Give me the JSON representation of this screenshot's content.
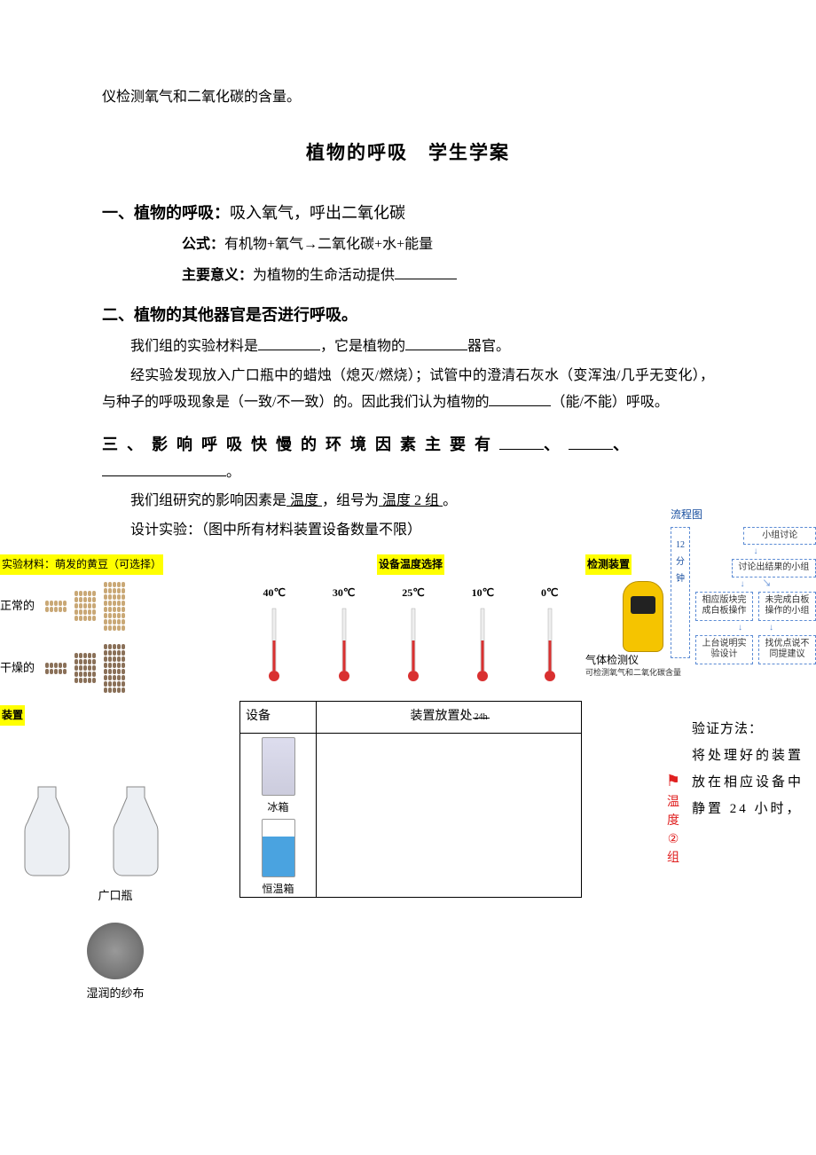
{
  "top_line": "仪检测氧气和二氧化碳的含量。",
  "title": "植物的呼吸　学生学案",
  "s1": {
    "heading_bold": "一、植物的呼吸：",
    "heading_rest": "吸入氧气，呼出二氧化碳",
    "formula_lbl": "公式：",
    "formula_txt": "有机物+氧气→二氧化碳+水+能量",
    "meaning_lbl": "主要意义：",
    "meaning_txt": "为植物的生命活动提供"
  },
  "s2": {
    "heading": "二、植物的其他器官是否进行呼吸。",
    "p1a": "我们组的实验材料是",
    "p1b": "，它是植物的",
    "p1c": "器官。",
    "p2": "经实验发现放入广口瓶中的蜡烛（熄灭/燃烧）；试管中的澄清石灰水（变浑浊/几乎无变化），与种子的呼吸现象是（一致/不一致）的。因此我们认为植物的",
    "p2b": "（能/不能）呼吸。"
  },
  "s3": {
    "heading_a": "三、影响呼吸快慢的环境因素主要有",
    "heading_b": "、",
    "heading_c": "、",
    "heading_d": "。",
    "p1a": "我们组研究的影响因素是",
    "p1_factor": " 温度 ",
    "p1b": "，组号为",
    "p1_group": " 温度 2 组 ",
    "p1c": "。",
    "p2": "设计实验：（图中所有材料装置设备数量不限）"
  },
  "diagram": {
    "mat_lbl": "实验材料：萌发的黄豆（可选择）",
    "normal": "正常的",
    "dry": "干燥的",
    "device_lbl": "装置",
    "bottle": "广口瓶",
    "gauze": "湿润的纱布",
    "temp_lbl": "设备温度选择",
    "temps": [
      "40℃",
      "30℃",
      "25℃",
      "10℃",
      "0℃"
    ],
    "table_c1": "设备",
    "table_c2a": "装置放置处",
    "table_c2b": "24h",
    "fridge": "冰箱",
    "incubator": "恒温箱",
    "detect_lbl": "检测装置",
    "detector": "气体检测仪",
    "detector_sub": "可检测氧气和二氧化碳含量",
    "flow_lbl": "流程图",
    "flow_time": "12分钟",
    "flow_b1": "小组讨论",
    "flow_b2": "讨论出结果的小组",
    "flow_b3": "相应版块完成白板操作",
    "flow_b4": "未完成白板操作的小组",
    "flow_b5": "上台说明实验设计",
    "flow_b6": "找优点说不同提建议",
    "flag_t": "温度②组",
    "right_a": "验证方法：",
    "right_b": "将处理好的装置放在相应设备中静置 24 小时，"
  },
  "colors": {
    "highlight": "#ffff00",
    "flow_border": "#5b8bd4",
    "flow_text": "#1a50a0",
    "red": "#e02020",
    "bean_normal": "#c9a876",
    "bean_dry": "#8a7058",
    "detector": "#f5c400",
    "thermo_red": "#d93030"
  }
}
